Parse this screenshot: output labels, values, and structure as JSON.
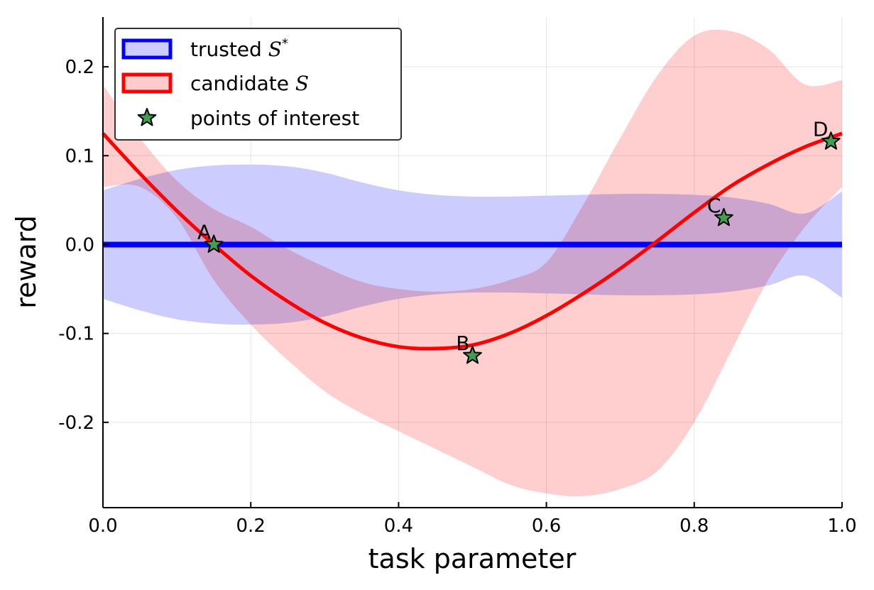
{
  "chart_data": {
    "type": "line",
    "xlabel": "task parameter",
    "ylabel": "reward",
    "xlim": [
      0.0,
      1.0
    ],
    "ylim": [
      -0.296,
      0.256
    ],
    "x_ticks": [
      0.0,
      0.2,
      0.4,
      0.6,
      0.8,
      1.0
    ],
    "x_tick_labels": [
      "0.0",
      "0.2",
      "0.4",
      "0.6",
      "0.8",
      "1.0"
    ],
    "y_ticks": [
      -0.2,
      -0.1,
      0.0,
      0.1,
      0.2
    ],
    "y_tick_labels": [
      "-0.2",
      "-0.1",
      "0.0",
      "0.1",
      "0.2"
    ],
    "grid": true,
    "legend_position": "top-left",
    "legend": [
      {
        "label": "trusted ",
        "math": "S",
        "sup": "*",
        "kind": "band",
        "color": "#0000ff",
        "fill": "#ccccff"
      },
      {
        "label": "candidate ",
        "math": "S",
        "sup": "",
        "kind": "band",
        "color": "#ff0000",
        "fill": "#ffcccc"
      },
      {
        "label": "points of interest",
        "math": "",
        "sup": "",
        "kind": "star",
        "color": "#3f9f4f"
      }
    ],
    "series": [
      {
        "name": "trusted S*",
        "color": "#0000ff",
        "band_color": "#ccccff",
        "x": [
          0.0,
          0.05,
          0.1,
          0.15,
          0.2,
          0.25,
          0.3,
          0.35,
          0.4,
          0.45,
          0.5,
          0.55,
          0.6,
          0.65,
          0.7,
          0.75,
          0.8,
          0.85,
          0.9,
          0.95,
          1.0
        ],
        "mean": [
          0.0,
          0.0,
          0.0,
          0.0,
          0.0,
          0.0,
          0.0,
          0.0,
          0.0,
          0.0,
          0.0,
          0.0,
          0.0,
          0.0,
          0.0,
          0.0,
          0.0,
          0.0,
          0.0,
          0.0,
          0.0
        ],
        "upper": [
          0.061,
          0.074,
          0.084,
          0.089,
          0.09,
          0.088,
          0.081,
          0.07,
          0.061,
          0.056,
          0.054,
          0.054,
          0.055,
          0.056,
          0.057,
          0.057,
          0.056,
          0.053,
          0.046,
          0.035,
          0.06
        ],
        "lower": [
          -0.061,
          -0.074,
          -0.084,
          -0.089,
          -0.09,
          -0.088,
          -0.081,
          -0.07,
          -0.061,
          -0.056,
          -0.054,
          -0.054,
          -0.055,
          -0.056,
          -0.057,
          -0.057,
          -0.056,
          -0.053,
          -0.046,
          -0.035,
          -0.06
        ]
      },
      {
        "name": "candidate S",
        "color": "#ff0000",
        "band_color": "#ffcccc",
        "x": [
          0.0,
          0.05,
          0.1,
          0.15,
          0.2,
          0.25,
          0.3,
          0.35,
          0.4,
          0.45,
          0.5,
          0.55,
          0.6,
          0.65,
          0.7,
          0.75,
          0.8,
          0.85,
          0.9,
          0.95,
          1.0
        ],
        "mean": [
          0.125,
          0.08,
          0.038,
          0.0,
          -0.035,
          -0.064,
          -0.088,
          -0.105,
          -0.115,
          -0.117,
          -0.113,
          -0.1,
          -0.08,
          -0.055,
          -0.027,
          0.004,
          0.036,
          0.066,
          0.09,
          0.11,
          0.125
        ],
        "upper": [
          0.18,
          0.12,
          0.072,
          0.04,
          0.02,
          -0.005,
          -0.025,
          -0.042,
          -0.05,
          -0.053,
          -0.05,
          -0.04,
          -0.02,
          0.045,
          0.12,
          0.19,
          0.235,
          0.24,
          0.22,
          0.18,
          0.185
        ],
        "lower": [
          0.065,
          0.065,
          0.03,
          -0.04,
          -0.09,
          -0.13,
          -0.165,
          -0.19,
          -0.21,
          -0.23,
          -0.25,
          -0.27,
          -0.28,
          -0.283,
          -0.275,
          -0.255,
          -0.2,
          -0.12,
          -0.04,
          0.02,
          0.065
        ]
      }
    ],
    "points": [
      {
        "label": "A",
        "x": 0.15,
        "y": 0.0
      },
      {
        "label": "B",
        "x": 0.5,
        "y": -0.125
      },
      {
        "label": "C",
        "x": 0.84,
        "y": 0.03
      },
      {
        "label": "D",
        "x": 0.985,
        "y": 0.116
      }
    ]
  },
  "colors": {
    "trusted": "#0000ff",
    "trusted_band": "#ccccff",
    "candidate": "#ff0000",
    "candidate_band": "#ffcccc",
    "star": "#3f9f4f"
  }
}
